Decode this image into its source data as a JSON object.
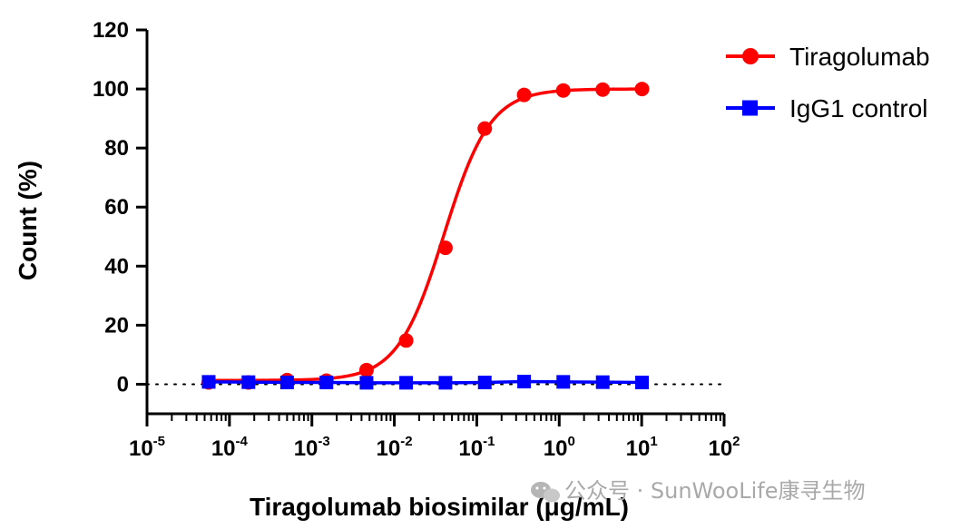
{
  "chart_data": {
    "type": "line",
    "xlabel": "Tiragolumab biosimilar (μg/mL)",
    "ylabel": "Count (%)",
    "x_scale": "log10",
    "xlim": [
      1e-05,
      100
    ],
    "ylim": [
      -10,
      120
    ],
    "x_tick_labels": [
      {
        "base": "10",
        "exp": "-5"
      },
      {
        "base": "10",
        "exp": "-4"
      },
      {
        "base": "10",
        "exp": "-3"
      },
      {
        "base": "10",
        "exp": "-2"
      },
      {
        "base": "10",
        "exp": "-1"
      },
      {
        "base": "10",
        "exp": "0"
      },
      {
        "base": "10",
        "exp": "1"
      },
      {
        "base": "10",
        "exp": "2"
      }
    ],
    "y_tick_labels": [
      "0",
      "20",
      "40",
      "60",
      "80",
      "100",
      "120"
    ],
    "baseline": 0,
    "legend_position": "top-right",
    "series": [
      {
        "name": "Tiragolumab",
        "color": "#ff0000",
        "marker": "circle",
        "fit": "sigmoid",
        "bottom": 1.3,
        "top": 100,
        "ec50": 0.04,
        "hill": 1.55,
        "x": [
          5.6e-05,
          0.00017,
          0.0005,
          0.0015,
          0.0046,
          0.0139,
          0.0417,
          0.125,
          0.375,
          1.12,
          3.37,
          10.1
        ],
        "y": [
          0.6,
          0.6,
          1.4,
          1.2,
          4.8,
          14.8,
          46.2,
          86.6,
          98.0,
          99.5,
          99.8,
          100.0
        ]
      },
      {
        "name": "IgG1 control",
        "color": "#0000ff",
        "marker": "square",
        "fit": "line",
        "x": [
          5.6e-05,
          0.00017,
          0.0005,
          0.0015,
          0.0046,
          0.0139,
          0.0417,
          0.125,
          0.375,
          1.12,
          3.37,
          10.1
        ],
        "y": [
          0.8,
          0.7,
          0.6,
          0.6,
          0.5,
          0.5,
          0.5,
          0.6,
          0.9,
          0.8,
          0.7,
          0.6
        ]
      }
    ]
  },
  "watermark": {
    "icon": "wechat-icon",
    "text": "公众号 · SunWooLife康寻生物"
  }
}
